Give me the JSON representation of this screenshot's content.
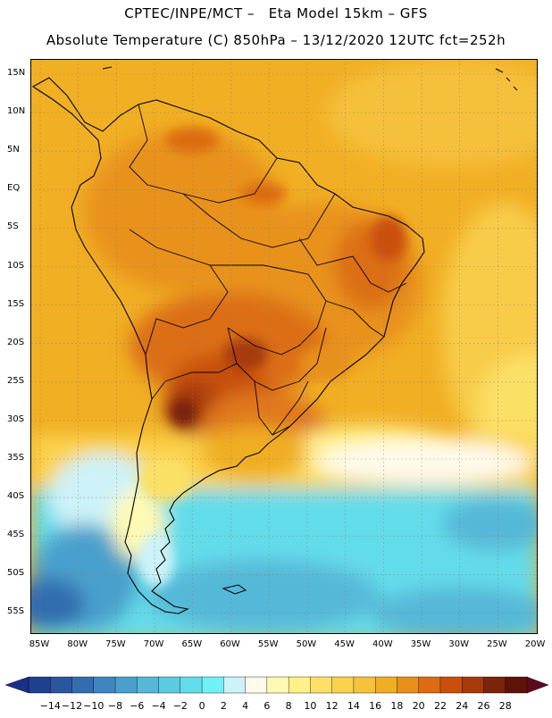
{
  "header": {
    "line1": "CPTEC/INPE/MCT –   Eta Model 15km – GFS",
    "line2": "Absolute Temperature (C) 850hPa – 13/12/2020 12UTC fct=252h"
  },
  "map": {
    "lat_labels": [
      "15N",
      "10N",
      "5N",
      "EQ",
      "5S",
      "10S",
      "15S",
      "20S",
      "25S",
      "30S",
      "35S",
      "40S",
      "45S",
      "50S",
      "55S"
    ],
    "lon_labels": [
      "85W",
      "80W",
      "75W",
      "70W",
      "65W",
      "60W",
      "55W",
      "50W",
      "45W",
      "40W",
      "35W",
      "30W",
      "25W",
      "20W"
    ]
  },
  "colorbar": {
    "ticks": [
      "-14",
      "-12",
      "-10",
      "-8",
      "-6",
      "-4",
      "-2",
      "0",
      "2",
      "4",
      "6",
      "8",
      "10",
      "12",
      "14",
      "16",
      "18",
      "20",
      "22",
      "24",
      "26",
      "28"
    ],
    "colors": [
      "#1f3f8f",
      "#2a55a0",
      "#336db0",
      "#3f86c0",
      "#4aa0cc",
      "#56b8d8",
      "#5ccbe0",
      "#63dcea",
      "#6ef2f5",
      "#cdf2f8",
      "#fffaeb",
      "#fffab3",
      "#fff08a",
      "#ffe066",
      "#fbd24b",
      "#f6c23a",
      "#f0ae22",
      "#e8901a",
      "#dc6c10",
      "#c94f0a",
      "#a63a09",
      "#7a2409",
      "#5e1208"
    ],
    "left_arrow_color": "#1c2f86",
    "right_arrow_color": "#5c0a20"
  }
}
